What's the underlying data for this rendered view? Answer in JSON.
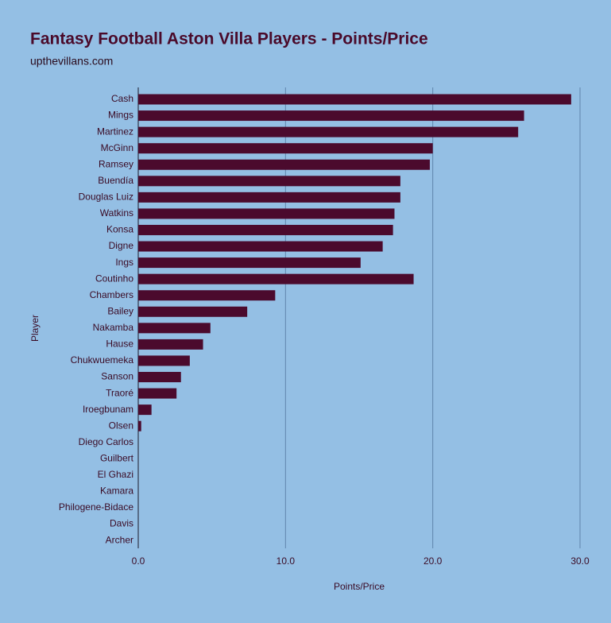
{
  "chart_data": {
    "type": "bar",
    "orientation": "horizontal",
    "title": "Fantasy Football Aston Villa Players - Points/Price",
    "subtitle": "upthevillans.com",
    "x_label": "Points/Price",
    "y_label": "Player",
    "categories": [
      "Cash",
      "Mings",
      "Martinez",
      "McGinn",
      "Ramsey",
      "Buendía",
      "Douglas Luiz",
      "Watkins",
      "Konsa",
      "Digne",
      "Ings",
      "Coutinho",
      "Chambers",
      "Bailey",
      "Nakamba",
      "Hause",
      "Chukwuemeka",
      "Sanson",
      "Traoré",
      "Iroegbunam",
      "Olsen",
      "Diego Carlos",
      "Guilbert",
      "El Ghazi",
      "Kamara",
      "Philogene-Bidace",
      "Davis",
      "Archer"
    ],
    "values": [
      29.4,
      26.2,
      25.8,
      20.0,
      19.8,
      17.8,
      17.8,
      17.4,
      17.3,
      16.6,
      15.1,
      18.7,
      9.3,
      7.4,
      4.9,
      4.4,
      3.5,
      2.9,
      2.6,
      0.9,
      0.2,
      0,
      0,
      0,
      0,
      0,
      0,
      0
    ],
    "color": "#4b0a2d",
    "xlim": [
      0,
      30
    ],
    "xticks": [
      {
        "value": 0,
        "label": "0.0"
      },
      {
        "value": 10,
        "label": "10.0"
      },
      {
        "value": 20,
        "label": "20.0"
      },
      {
        "value": 30,
        "label": "30.0"
      }
    ],
    "grid": true
  }
}
